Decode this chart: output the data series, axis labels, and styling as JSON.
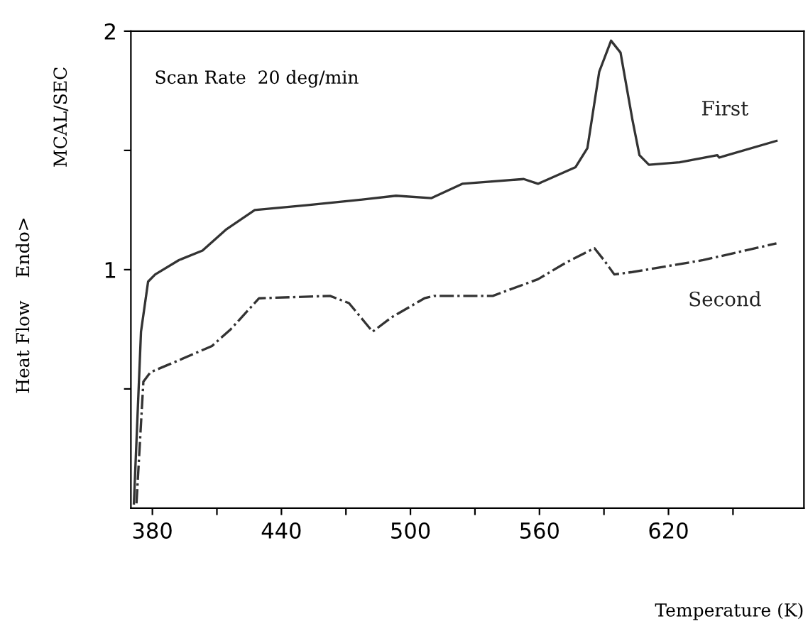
{
  "chart_data": {
    "type": "line",
    "xlabel": "Temperature (K)",
    "ylabel": "MCAL/SEC",
    "xlim": [
      370,
      683
    ],
    "ylim": [
      0,
      2
    ],
    "xticks": [
      380,
      {
        "value": 410,
        "label": null
      },
      440,
      {
        "value": 470,
        "label": null
      },
      500,
      {
        "value": 530,
        "label": null
      },
      560,
      {
        "value": 590,
        "label": null
      },
      620,
      {
        "value": 650,
        "label": null
      }
    ],
    "yticks": [
      {
        "value": 0.5,
        "label": null
      },
      1,
      {
        "value": 1.5,
        "label": null
      },
      2
    ],
    "grid": false,
    "legend": false,
    "series": [
      {
        "name": "First",
        "color": "#333333",
        "line_style": "solid",
        "x": [
          371.4,
          374.7,
          378,
          381.3,
          392.3,
          403.3,
          414.5,
          427.6,
          451.6,
          473.6,
          493.3,
          509.8,
          524.1,
          552.7,
          559.3,
          576.8,
          582.3,
          587.8,
          593.3,
          597.7,
          603.2,
          606.5,
          610.9,
          625.2,
          642.7,
          643.6,
          670.2
        ],
        "values": [
          0.02,
          0.74,
          0.95,
          0.98,
          1.04,
          1.08,
          1.17,
          1.25,
          1.27,
          1.29,
          1.31,
          1.3,
          1.36,
          1.38,
          1.36,
          1.43,
          1.51,
          1.83,
          1.96,
          1.91,
          1.63,
          1.48,
          1.44,
          1.45,
          1.48,
          1.47,
          1.54
        ]
      },
      {
        "name": "Second",
        "color": "#333333",
        "line_style": "dashed",
        "x": [
          372.6,
          375.8,
          379.1,
          392.3,
          407.7,
          416.4,
          429.6,
          462.6,
          471.4,
          482.4,
          491.2,
          506.5,
          510.9,
          538.3,
          559.3,
          572.4,
          585.6,
          590,
          594.8,
          603.2,
          636.1,
          670.2
        ],
        "values": [
          0.02,
          0.53,
          0.57,
          0.62,
          0.68,
          0.75,
          0.88,
          0.89,
          0.86,
          0.74,
          0.8,
          0.88,
          0.89,
          0.89,
          0.96,
          1.03,
          1.09,
          1.04,
          0.98,
          0.99,
          1.04,
          1.11
        ]
      }
    ],
    "annotations": [
      "Scan Rate  20 deg/min",
      "Heat Flow    Endo>"
    ]
  }
}
